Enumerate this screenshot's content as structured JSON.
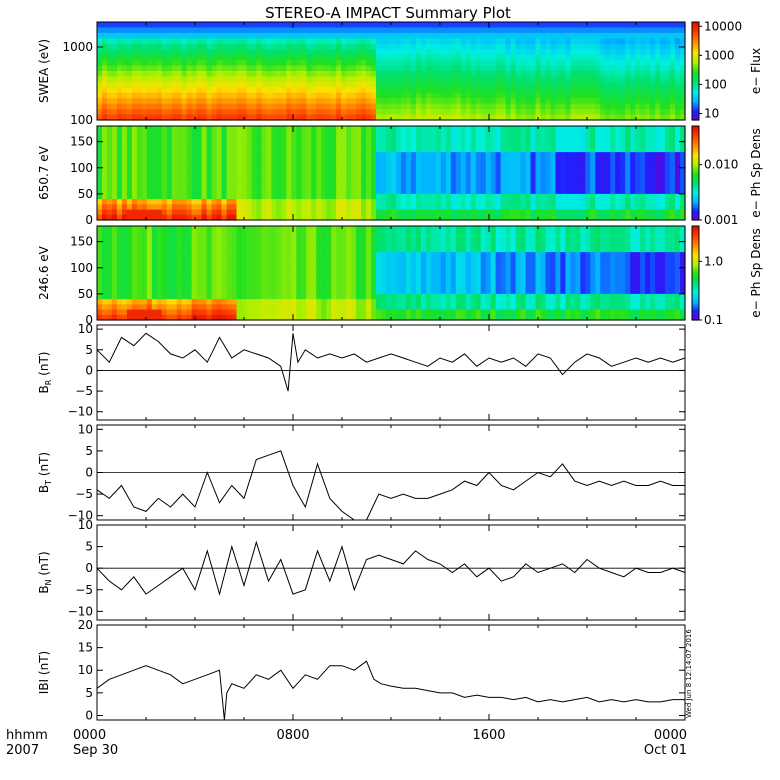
{
  "title": "STEREO-A IMPACT Summary Plot",
  "timestamp": "Wed Jun  8 12:14:07 2016",
  "time_axis": {
    "row_label": "hhmm",
    "year": "2007",
    "ticks": [
      {
        "hours": 0,
        "label": "0000",
        "date": "Sep 30"
      },
      {
        "hours": 8,
        "label": "0800",
        "date": ""
      },
      {
        "hours": 16,
        "label": "1600",
        "date": ""
      },
      {
        "hours": 24,
        "label": "0000",
        "date": "Oct 01"
      }
    ],
    "range_hours": [
      0,
      24
    ]
  },
  "colors": {
    "spectrogram_scale": [
      "#6a00d0",
      "#2020ff",
      "#00b4ff",
      "#00f0e0",
      "#00e070",
      "#20e020",
      "#b0f000",
      "#ffe000",
      "#ff9000",
      "#ff4000",
      "#e01000"
    ],
    "line": "#000000"
  },
  "chart_data": [
    {
      "type": "heatmap",
      "ylabel": "SWEA (eV)",
      "yscale": "log",
      "ylim": [
        100,
        2200
      ],
      "yticks": [
        {
          "v": 100,
          "label": "100"
        },
        {
          "v": 1000,
          "label": "1000"
        }
      ],
      "colorbar": {
        "label": "e− Flux",
        "scale": "log",
        "range": [
          6,
          14000
        ],
        "ticks": [
          {
            "v": 10,
            "label": "10"
          },
          {
            "v": 100,
            "label": "100"
          },
          {
            "v": 1000,
            "label": "1000"
          },
          {
            "v": 10000,
            "label": "10000"
          }
        ]
      },
      "description_levels": {
        "x_hours": [
          0,
          11,
          11.5,
          14,
          24
        ],
        "note": "high flux at low energies before ~11h, lower after"
      }
    },
    {
      "type": "heatmap",
      "ylabel": "650.7 eV",
      "ylim": [
        0,
        180
      ],
      "yticks": [
        {
          "v": 0,
          "label": "0"
        },
        {
          "v": 50,
          "label": "50"
        },
        {
          "v": 100,
          "label": "100"
        },
        {
          "v": 150,
          "label": "150"
        }
      ],
      "colorbar": {
        "label": "e− Ph Sp Dens",
        "scale": "log",
        "range": [
          0.001,
          0.05
        ],
        "ticks": [
          {
            "v": 0.001,
            "label": "0.001"
          },
          {
            "v": 0.01,
            "label": "0.010"
          }
        ]
      }
    },
    {
      "type": "heatmap",
      "ylabel": "246.6 eV",
      "ylim": [
        0,
        180
      ],
      "yticks": [
        {
          "v": 0,
          "label": "0"
        },
        {
          "v": 50,
          "label": "50"
        },
        {
          "v": 100,
          "label": "100"
        },
        {
          "v": 150,
          "label": "150"
        }
      ],
      "colorbar": {
        "label": "e− Ph Sp Dens",
        "scale": "log",
        "range": [
          0.1,
          4
        ],
        "ticks": [
          {
            "v": 0.1,
            "label": "0.1"
          },
          {
            "v": 1.0,
            "label": "1.0"
          }
        ]
      }
    },
    {
      "type": "line",
      "ylabel_main": "B",
      "ylabel_sub": "R",
      "ylabel_unit": " (nT)",
      "ylim": [
        -12,
        11
      ],
      "yticks": [
        {
          "v": -10,
          "label": "−10"
        },
        {
          "v": -5,
          "label": "−5"
        },
        {
          "v": 0,
          "label": "0"
        },
        {
          "v": 5,
          "label": "5"
        },
        {
          "v": 10,
          "label": "10"
        }
      ],
      "x": [
        0,
        0.5,
        1,
        1.5,
        2,
        2.5,
        3,
        3.5,
        4,
        4.5,
        5,
        5.5,
        6,
        6.5,
        7,
        7.5,
        7.8,
        8,
        8.2,
        8.5,
        9,
        9.5,
        10,
        10.5,
        11,
        11.5,
        12,
        12.5,
        13,
        13.5,
        14,
        14.5,
        15,
        15.5,
        16,
        16.5,
        17,
        17.5,
        18,
        18.5,
        19,
        19.5,
        20,
        20.5,
        21,
        21.5,
        22,
        22.5,
        23,
        23.5,
        24
      ],
      "y": [
        5,
        2,
        8,
        6,
        9,
        7,
        4,
        3,
        5,
        2,
        8,
        3,
        5,
        4,
        3,
        1,
        -5,
        9,
        2,
        5,
        3,
        4,
        3,
        4,
        2,
        3,
        4,
        3,
        2,
        1,
        3,
        2,
        4,
        1,
        3,
        2,
        3,
        1,
        4,
        3,
        -1,
        2,
        4,
        3,
        1,
        2,
        3,
        2,
        3,
        2,
        3
      ]
    },
    {
      "type": "line",
      "ylabel_main": "B",
      "ylabel_sub": "T",
      "ylabel_unit": " (nT)",
      "ylim": [
        -11,
        11
      ],
      "yticks": [
        {
          "v": -10,
          "label": "−10"
        },
        {
          "v": -5,
          "label": "−5"
        },
        {
          "v": 0,
          "label": "0"
        },
        {
          "v": 5,
          "label": "5"
        },
        {
          "v": 10,
          "label": "10"
        }
      ],
      "x": [
        0,
        0.5,
        1,
        1.5,
        2,
        2.5,
        3,
        3.5,
        4,
        4.5,
        5,
        5.5,
        6,
        6.5,
        7,
        7.5,
        8,
        8.5,
        9,
        9.5,
        10,
        10.5,
        11,
        11.5,
        12,
        12.5,
        13,
        13.5,
        14,
        14.5,
        15,
        15.5,
        16,
        16.5,
        17,
        17.5,
        18,
        18.5,
        19,
        19.5,
        20,
        20.5,
        21,
        21.5,
        22,
        22.5,
        23,
        23.5,
        24
      ],
      "y": [
        -4,
        -6,
        -3,
        -8,
        -9,
        -6,
        -8,
        -5,
        -8,
        0,
        -7,
        -3,
        -6,
        3,
        4,
        5,
        -3,
        -8,
        2,
        -6,
        -9,
        -11,
        -11,
        -5,
        -6,
        -5,
        -6,
        -6,
        -5,
        -4,
        -2,
        -3,
        0,
        -3,
        -4,
        -2,
        0,
        -1,
        2,
        -2,
        -3,
        -2,
        -3,
        -2,
        -3,
        -3,
        -2,
        -3,
        -3
      ]
    },
    {
      "type": "line",
      "ylabel_main": "B",
      "ylabel_sub": "N",
      "ylabel_unit": " (nT)",
      "ylim": [
        -12,
        10
      ],
      "yticks": [
        {
          "v": -10,
          "label": "−10"
        },
        {
          "v": -5,
          "label": "−5"
        },
        {
          "v": 0,
          "label": "0"
        },
        {
          "v": 5,
          "label": "5"
        },
        {
          "v": 10,
          "label": "10"
        }
      ],
      "x": [
        0,
        0.5,
        1,
        1.5,
        2,
        2.5,
        3,
        3.5,
        4,
        4.5,
        5,
        5.5,
        6,
        6.5,
        7,
        7.5,
        8,
        8.5,
        9,
        9.5,
        10,
        10.5,
        11,
        11.5,
        12,
        12.5,
        13,
        13.5,
        14,
        14.5,
        15,
        15.5,
        16,
        16.5,
        17,
        17.5,
        18,
        18.5,
        19,
        19.5,
        20,
        20.5,
        21,
        21.5,
        22,
        22.5,
        23,
        23.5,
        24
      ],
      "y": [
        0,
        -3,
        -5,
        -2,
        -6,
        -4,
        -2,
        0,
        -5,
        4,
        -6,
        5,
        -4,
        6,
        -3,
        2,
        -6,
        -5,
        4,
        -3,
        5,
        -5,
        2,
        3,
        2,
        1,
        4,
        2,
        1,
        -1,
        1,
        -2,
        0,
        -3,
        -2,
        1,
        -1,
        0,
        1,
        -1,
        2,
        0,
        -1,
        -2,
        0,
        -1,
        -1,
        0,
        -1
      ]
    },
    {
      "type": "line",
      "ylabel_main": "IBI",
      "ylabel_sub": "",
      "ylabel_unit": " (nT)",
      "ylim": [
        -1,
        20
      ],
      "yticks": [
        {
          "v": 0,
          "label": "0"
        },
        {
          "v": 5,
          "label": "5"
        },
        {
          "v": 10,
          "label": "10"
        },
        {
          "v": 15,
          "label": "15"
        },
        {
          "v": 20,
          "label": "20"
        }
      ],
      "x": [
        0,
        0.5,
        1,
        1.5,
        2,
        2.5,
        3,
        3.5,
        4,
        4.5,
        5,
        5.2,
        5.3,
        5.5,
        6,
        6.5,
        7,
        7.5,
        8,
        8.5,
        9,
        9.5,
        10,
        10.5,
        11,
        11.3,
        11.6,
        12,
        12.5,
        13,
        13.5,
        14,
        14.5,
        15,
        15.5,
        16,
        16.5,
        17,
        17.5,
        18,
        18.5,
        19,
        19.5,
        20,
        20.5,
        21,
        21.5,
        22,
        22.5,
        23,
        23.5,
        24
      ],
      "y": [
        6,
        8,
        9,
        10,
        11,
        10,
        9,
        7,
        8,
        9,
        10,
        -1,
        5,
        7,
        6,
        9,
        8,
        10,
        6,
        9,
        8,
        11,
        11,
        10,
        12,
        8,
        7,
        6.5,
        6,
        6,
        5.5,
        5,
        5,
        4,
        4.5,
        4,
        4,
        3.5,
        4,
        3,
        3.5,
        3,
        3.5,
        4,
        3,
        3.5,
        3,
        3.5,
        3,
        3,
        3.5,
        3.5
      ]
    }
  ]
}
